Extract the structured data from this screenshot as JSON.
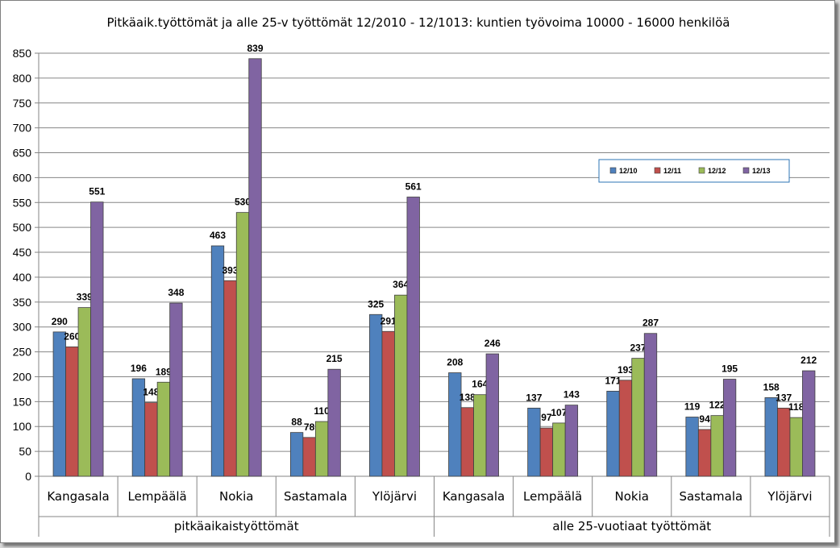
{
  "chart_data": {
    "type": "bar",
    "title": "Pitkäaik.työttömät ja alle 25-v työttömät 12/2010 - 12/1013: kuntien työvoima 10000 - 16000 henkilöä",
    "groups": [
      "pitkäaikaistyöttömät",
      "alle 25-vuotiaat työttömät"
    ],
    "categories": [
      "Kangasala",
      "Lempäälä",
      "Nokia",
      "Sastamala",
      "Ylöjärvi",
      "Kangasala",
      "Lempäälä",
      "Nokia",
      "Sastamala",
      "Ylöjärvi"
    ],
    "series": [
      {
        "name": "12/10",
        "color": "#4f81bd",
        "values": [
          290,
          196,
          463,
          88,
          325,
          208,
          137,
          171,
          119,
          158
        ]
      },
      {
        "name": "12/11",
        "color": "#c0504d",
        "values": [
          260,
          148,
          393,
          78,
          291,
          138,
          97,
          193,
          94,
          137
        ]
      },
      {
        "name": "12/12",
        "color": "#9bbb59",
        "values": [
          339,
          189,
          530,
          110,
          364,
          164,
          107,
          237,
          122,
          118
        ]
      },
      {
        "name": "12/13",
        "color": "#8064a2",
        "values": [
          551,
          348,
          839,
          215,
          561,
          246,
          143,
          287,
          195,
          212
        ]
      }
    ],
    "ylim": [
      0,
      850
    ],
    "yticks": [
      0,
      50,
      100,
      150,
      200,
      250,
      300,
      350,
      400,
      450,
      500,
      550,
      600,
      650,
      700,
      750,
      800,
      850
    ],
    "grid": true,
    "legend_position": "top-right",
    "xlabel": "",
    "ylabel": ""
  }
}
